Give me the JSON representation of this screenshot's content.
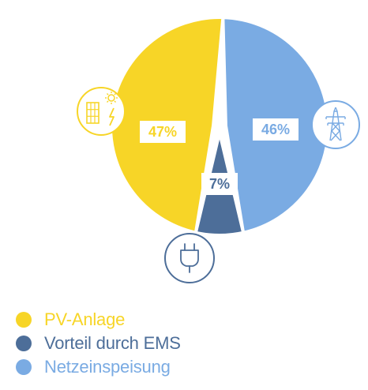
{
  "chart_data": {
    "type": "pie",
    "unit": "%",
    "slices": [
      {
        "key": "pv",
        "label": "PV-Anlage",
        "value": 47,
        "value_label": "47%",
        "color": "#f7d527",
        "icon": "solar-panel-icon"
      },
      {
        "key": "ems",
        "label": "Vorteil durch EMS",
        "value": 7,
        "value_label": "7%",
        "color": "#4d6e99",
        "icon": "plug-icon"
      },
      {
        "key": "grid",
        "label": "Netzeinspeisung",
        "value": 46,
        "value_label": "46%",
        "color": "#7aabe3",
        "icon": "power-tower-icon"
      }
    ]
  },
  "legend": {
    "items": [
      {
        "label": "PV-Anlage",
        "color": "#f7d527"
      },
      {
        "label": "Vorteil durch EMS",
        "color": "#4d6e99"
      },
      {
        "label": "Netzeinspeisung",
        "color": "#7aabe3"
      }
    ]
  }
}
